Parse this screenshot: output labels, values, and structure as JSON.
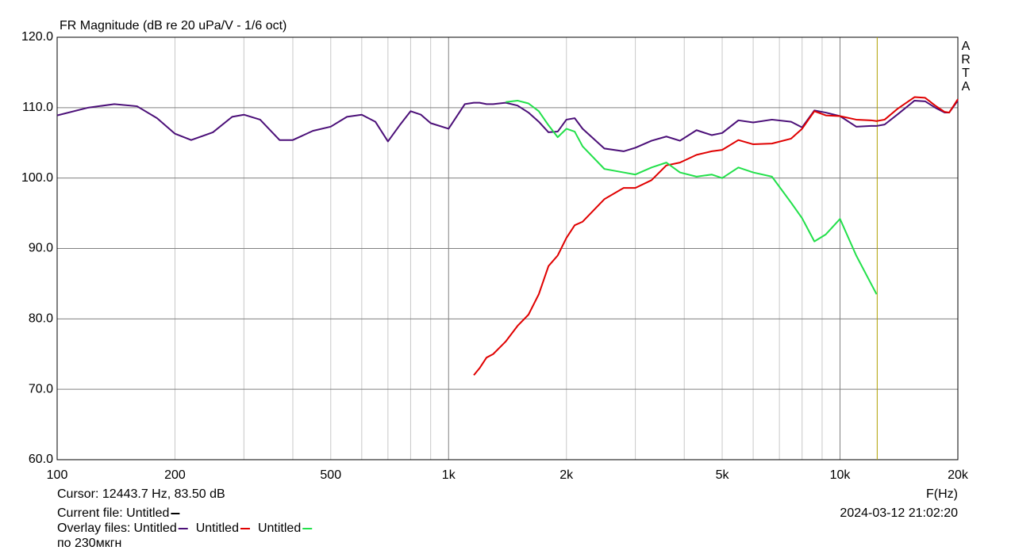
{
  "chart_data": {
    "type": "line",
    "title": "FR Magnitude (dB re 20 uPa/V - 1/6 oct)",
    "brand": "ARTA",
    "x_label": "F(Hz)",
    "x_scale": "log",
    "x": [
      100,
      120,
      140,
      160,
      180,
      200,
      220,
      250,
      280,
      300,
      330,
      370,
      400,
      450,
      500,
      550,
      600,
      650,
      700,
      750,
      800,
      850,
      900,
      1000,
      1100,
      1160,
      1200,
      1250,
      1300,
      1400,
      1500,
      1600,
      1700,
      1800,
      1900,
      2000,
      2100,
      2200,
      2500,
      2800,
      3000,
      3300,
      3600,
      3900,
      4300,
      4700,
      5000,
      5500,
      6000,
      6700,
      7500,
      8000,
      8600,
      9200,
      10000,
      11000,
      12000,
      12400,
      13000,
      14000,
      15500,
      16500,
      17500,
      18500,
      19000,
      20000
    ],
    "series": [
      {
        "name": "Untitled",
        "color": "#4b0f78",
        "values": [
          108.9,
          110.0,
          110.5,
          110.2,
          108.5,
          106.3,
          105.4,
          106.5,
          108.7,
          109.0,
          108.3,
          105.4,
          105.4,
          106.7,
          107.3,
          108.7,
          109.0,
          108.0,
          105.2,
          107.5,
          109.5,
          109.0,
          107.8,
          107.0,
          110.5,
          110.7,
          110.7,
          110.5,
          110.5,
          110.7,
          110.3,
          109.3,
          108.0,
          106.5,
          106.6,
          108.3,
          108.5,
          107.0,
          104.2,
          103.8,
          104.3,
          105.3,
          105.9,
          105.3,
          106.8,
          106.1,
          106.4,
          108.2,
          107.9,
          108.3,
          108.0,
          107.2,
          109.6,
          109.3,
          108.8,
          107.3,
          107.4,
          107.4,
          107.6,
          109.0,
          111.0,
          110.9,
          110.0,
          109.3,
          109.3,
          111.0
        ]
      },
      {
        "name": "Untitled",
        "color": "#e00000",
        "values": [
          null,
          null,
          null,
          null,
          null,
          null,
          null,
          null,
          null,
          null,
          null,
          null,
          null,
          null,
          null,
          null,
          null,
          null,
          null,
          null,
          null,
          null,
          null,
          null,
          null,
          72.0,
          73.0,
          74.5,
          75.0,
          76.8,
          79.0,
          80.6,
          83.5,
          87.5,
          89.0,
          91.5,
          93.3,
          93.8,
          97.0,
          98.6,
          98.6,
          99.7,
          101.8,
          102.2,
          103.3,
          103.8,
          104.0,
          105.4,
          104.8,
          104.9,
          105.6,
          107.0,
          109.5,
          108.9,
          108.8,
          108.3,
          108.2,
          108.1,
          108.3,
          109.8,
          111.5,
          111.4,
          110.3,
          109.4,
          109.3,
          111.2
        ]
      },
      {
        "name": "Untitled",
        "color": "#22e04a",
        "values": [
          null,
          null,
          null,
          null,
          null,
          null,
          null,
          null,
          null,
          null,
          null,
          null,
          null,
          null,
          null,
          null,
          null,
          null,
          null,
          null,
          null,
          null,
          null,
          null,
          null,
          null,
          null,
          null,
          null,
          110.8,
          111.0,
          110.6,
          109.5,
          107.5,
          105.8,
          107.0,
          106.6,
          104.5,
          101.3,
          100.8,
          100.5,
          101.5,
          102.2,
          100.8,
          100.2,
          100.5,
          100.0,
          101.5,
          100.8,
          100.2,
          96.5,
          94.3,
          91.0,
          92.0,
          94.2,
          89.0,
          85.0,
          83.5,
          null,
          null,
          null,
          null,
          null,
          null,
          null,
          null
        ]
      }
    ],
    "xlim": [
      100,
      20000
    ],
    "ylim": [
      60,
      120
    ],
    "xticks": [
      100,
      200,
      500,
      {
        "value": 1000,
        "label": "1k"
      },
      {
        "value": 2000,
        "label": "2k"
      },
      {
        "value": 5000,
        "label": "5k"
      },
      {
        "value": 10000,
        "label": "10k"
      },
      {
        "value": 20000,
        "label": "20k"
      }
    ],
    "x_minor_ticks": [
      300,
      400,
      600,
      700,
      800,
      900,
      3000,
      4000,
      6000,
      7000,
      8000,
      9000
    ],
    "yticks": [
      {
        "value": 60,
        "label": "60.0"
      },
      {
        "value": 70,
        "label": "70.0"
      },
      {
        "value": 80,
        "label": "80.0"
      },
      {
        "value": 90,
        "label": "90.0"
      },
      {
        "value": 100,
        "label": "100.0"
      },
      {
        "value": 110,
        "label": "110.0"
      },
      {
        "value": 120,
        "label": "120.0"
      }
    ],
    "grid": true,
    "cursor": 12443.7,
    "cursor_color": "#b0a000",
    "cursor_label": "Cursor: 12443.7 Hz, 83.50 dB",
    "current_file_label": "Current file: Untitled",
    "current_file_color": "#000000",
    "overlay_label": "Overlay files:",
    "timestamp": "2024-03-12  21:02:20",
    "note": "по 230мкгн"
  }
}
